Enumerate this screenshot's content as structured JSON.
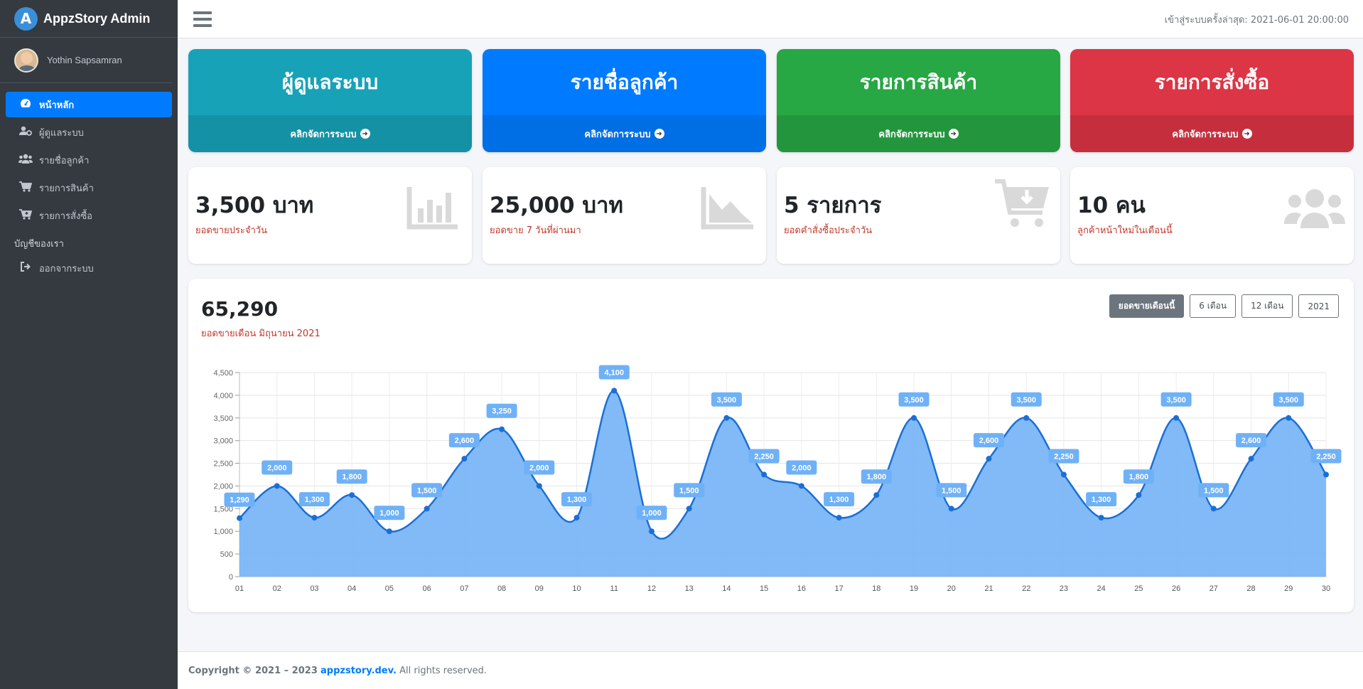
{
  "app": {
    "title": "AppzStory Admin",
    "logo_letter": "A"
  },
  "user": {
    "name": "Yothin Sapsamran"
  },
  "sidebar": {
    "items": [
      {
        "label": "หน้าหลัก",
        "icon": "dashboard-icon",
        "active": true
      },
      {
        "label": "ผู้ดูแลระบบ",
        "icon": "user-cog-icon"
      },
      {
        "label": "รายชื่อลูกค้า",
        "icon": "users-icon"
      },
      {
        "label": "รายการสินค้า",
        "icon": "cart-icon"
      },
      {
        "label": "รายการสั่งซื้อ",
        "icon": "cart-plus-icon"
      }
    ],
    "section_header": "บัญชีของเรา",
    "logout_label": "ออกจากระบบ"
  },
  "topbar": {
    "last_login": "เข้าสู่ระบบครั้งล่าสุด: 2021-06-01 20:00:00"
  },
  "tiles": [
    {
      "title": "ผู้ดูแลระบบ",
      "link": "คลิกจัดการระบบ",
      "color": "#17a2b8"
    },
    {
      "title": "รายชื่อลูกค้า",
      "link": "คลิกจัดการระบบ",
      "color": "#007bff"
    },
    {
      "title": "รายการสินค้า",
      "link": "คลิกจัดการระบบ",
      "color": "#28a745"
    },
    {
      "title": "รายการสั่งซื้อ",
      "link": "คลิกจัดการระบบ",
      "color": "#dc3545"
    }
  ],
  "stats": [
    {
      "value": "3,500 บาท",
      "label": "ยอดขายประจำวัน",
      "icon": "bar-chart-icon"
    },
    {
      "value": "25,000 บาท",
      "label": "ยอดขาย 7 วันที่ผ่านมา",
      "icon": "area-chart-icon"
    },
    {
      "value": "5 รายการ",
      "label": "ยอดคำสั่งซื้อประจำวัน",
      "icon": "cart-download-icon"
    },
    {
      "value": "10 คน",
      "label": "ลูกค้าหน้าใหม่ในเดือนนี้",
      "icon": "users-group-icon"
    }
  ],
  "sales": {
    "total": "65,290",
    "subtitle": "ยอดขายเดือน มิถุนายน 2021",
    "buttons": [
      {
        "label": "ยอดขายเดือนนี้",
        "active": true
      },
      {
        "label": "6 เดือน"
      },
      {
        "label": "12 เดือน"
      },
      {
        "label": "2021"
      }
    ]
  },
  "chart_data": {
    "type": "area",
    "categories": [
      "01",
      "02",
      "03",
      "04",
      "05",
      "06",
      "07",
      "08",
      "09",
      "10",
      "11",
      "12",
      "13",
      "14",
      "15",
      "16",
      "17",
      "18",
      "19",
      "20",
      "21",
      "22",
      "23",
      "24",
      "25",
      "26",
      "27",
      "28",
      "29",
      "30"
    ],
    "values": [
      1290,
      2000,
      1300,
      1800,
      1000,
      1500,
      2600,
      3250,
      2000,
      1300,
      4100,
      1000,
      1500,
      3500,
      2250,
      2000,
      1300,
      1800,
      3500,
      1500,
      2600,
      3500,
      2250,
      1300,
      1800,
      3500,
      1500,
      2600,
      3500,
      2250
    ],
    "ylim": [
      0,
      4500
    ],
    "yticks": [
      0,
      500,
      1000,
      1500,
      2000,
      2500,
      3000,
      3500,
      4000,
      4500
    ],
    "grid": true,
    "data_labels": true,
    "colors": {
      "fill": "#7ab6f5",
      "line": "#1a6fd6",
      "label_bg": "#6fb1f7"
    }
  },
  "footer": {
    "prefix": "Copyright © 2021 – 2023",
    "link": "appzstory.dev.",
    "suffix": "All rights reserved."
  }
}
